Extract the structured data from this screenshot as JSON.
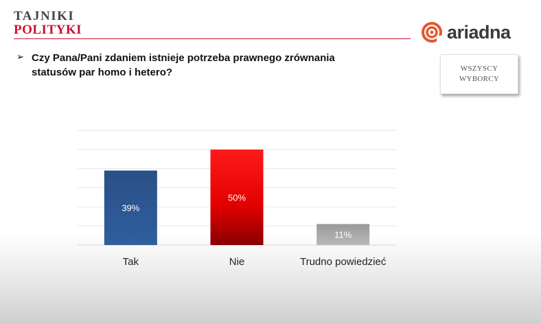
{
  "header": {
    "logo_line1": "TAJNIKI",
    "logo_line2": "POLITYKI",
    "brand": "ariadna",
    "brand_icon": "ariadna-spiral-icon"
  },
  "question": {
    "bullet_icon": "arrow-bullet-icon",
    "text": "Czy Pana/Pani zdaniem istnieje potrzeba prawnego zrównania statusów par homo i hetero?"
  },
  "badge": {
    "text": "WSZYSCY\nWYBORCY"
  },
  "colors": {
    "accent": "#c8102e",
    "brand_orange": "#e4572e"
  },
  "chart_data": {
    "type": "bar",
    "categories": [
      "Tak",
      "Nie",
      "Trudno powiedzieć"
    ],
    "values": [
      39,
      50,
      11
    ],
    "data_labels": [
      "39%",
      "50%",
      "11%"
    ],
    "colors": [
      "#2f5597",
      "#e00000",
      "#9e9e9e"
    ],
    "ylim": [
      0,
      60
    ],
    "grid": true,
    "legend": "none",
    "title": "",
    "xlabel": "",
    "ylabel": ""
  }
}
